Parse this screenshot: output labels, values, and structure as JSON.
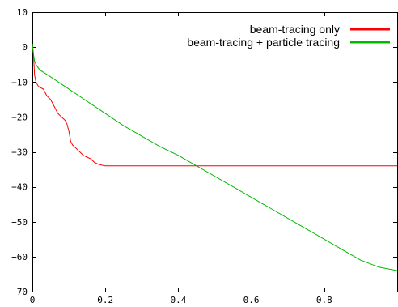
{
  "chart_data": {
    "type": "line",
    "xlim": [
      0,
      1
    ],
    "ylim": [
      -70,
      10
    ],
    "x_ticks": [
      {
        "value": 0,
        "label": "0"
      },
      {
        "value": 0.2,
        "label": "0.2"
      },
      {
        "value": 0.4,
        "label": "0.4"
      },
      {
        "value": 0.6,
        "label": "0.6"
      },
      {
        "value": 0.8,
        "label": "0.8"
      }
    ],
    "y_ticks": [
      {
        "value": 10,
        "label": "10"
      },
      {
        "value": 0,
        "label": "0"
      },
      {
        "value": -10,
        "label": "−10"
      },
      {
        "value": -20,
        "label": "−20"
      },
      {
        "value": -30,
        "label": "−30"
      },
      {
        "value": -40,
        "label": "−40"
      },
      {
        "value": -50,
        "label": "−50"
      },
      {
        "value": -60,
        "label": "−60"
      },
      {
        "value": -70,
        "label": "−70"
      }
    ],
    "grid": false,
    "legend_position": "top-right",
    "series": [
      {
        "name": "beam-tracing only",
        "color": "#ff0000",
        "x": [
          0,
          0.003,
          0.006,
          0.01,
          0.015,
          0.02,
          0.03,
          0.04,
          0.05,
          0.06,
          0.065,
          0.07,
          0.08,
          0.09,
          0.095,
          0.1,
          0.105,
          0.11,
          0.12,
          0.13,
          0.14,
          0.15,
          0.16,
          0.17,
          0.18,
          0.19,
          0.2,
          0.22,
          0.3,
          0.5,
          0.7,
          1.0
        ],
        "y": [
          0.5,
          -2,
          -8,
          -10,
          -11,
          -11.5,
          -12,
          -14,
          -15,
          -17,
          -18,
          -19,
          -20,
          -21,
          -22,
          -24,
          -27,
          -28,
          -29,
          -30,
          -31,
          -31.5,
          -32,
          -33,
          -33.5,
          -33.8,
          -34,
          -34,
          -34,
          -34,
          -34,
          -34
        ]
      },
      {
        "name": "beam-tracing + particle tracing",
        "color": "#00bb00",
        "x": [
          0,
          0.003,
          0.006,
          0.01,
          0.02,
          0.05,
          0.1,
          0.15,
          0.2,
          0.25,
          0.3,
          0.35,
          0.4,
          0.45,
          0.5,
          0.55,
          0.6,
          0.65,
          0.7,
          0.75,
          0.8,
          0.85,
          0.9,
          0.95,
          1.0
        ],
        "y": [
          1,
          -2,
          -4,
          -5,
          -6.5,
          -8.5,
          -12,
          -15.5,
          -19,
          -22.5,
          -25.5,
          -28.5,
          -31,
          -34,
          -37,
          -40,
          -43,
          -46,
          -49,
          -52,
          -55,
          -58,
          -61,
          -63,
          -64
        ]
      }
    ]
  }
}
